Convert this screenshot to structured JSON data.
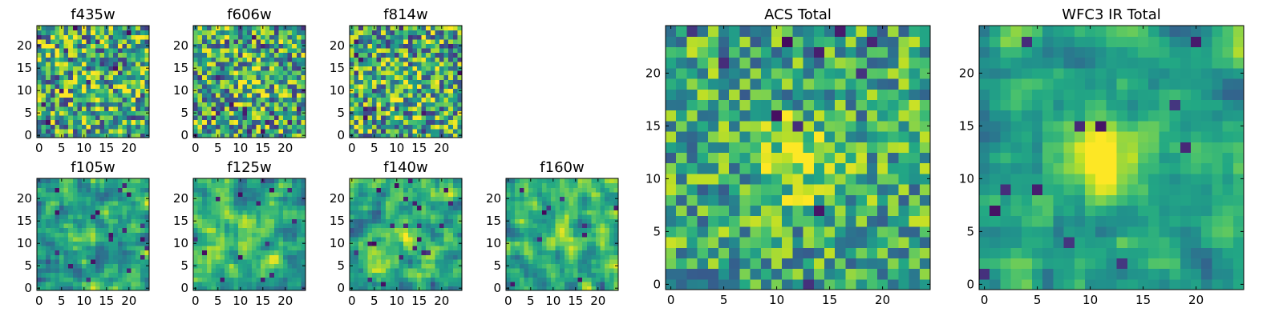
{
  "chart_data": [
    {
      "type": "heatmap",
      "title": "f435w",
      "grid_size": 25,
      "xlim": [
        0,
        24
      ],
      "ylim": [
        0,
        24
      ],
      "xticks": [
        0,
        5,
        10,
        15,
        20
      ],
      "yticks": [
        0,
        5,
        10,
        15,
        20
      ],
      "seed": 11,
      "peak": [
        11,
        11
      ],
      "peak_strength": 0.12,
      "noise": 0.55,
      "colormap": "viridis"
    },
    {
      "type": "heatmap",
      "title": "f606w",
      "grid_size": 25,
      "xlim": [
        0,
        24
      ],
      "ylim": [
        0,
        24
      ],
      "xticks": [
        0,
        5,
        10,
        15,
        20
      ],
      "yticks": [
        0,
        5,
        10,
        15,
        20
      ],
      "seed": 23,
      "peak": [
        12,
        12
      ],
      "peak_strength": 0.22,
      "noise": 0.55,
      "colormap": "viridis"
    },
    {
      "type": "heatmap",
      "title": "f814w",
      "grid_size": 25,
      "xlim": [
        0,
        24
      ],
      "ylim": [
        0,
        24
      ],
      "xticks": [
        0,
        5,
        10,
        15,
        20
      ],
      "yticks": [
        0,
        5,
        10,
        15,
        20
      ],
      "seed": 37,
      "peak": [
        12,
        11
      ],
      "peak_strength": 0.15,
      "noise": 0.55,
      "colormap": "viridis"
    },
    {
      "type": "heatmap",
      "title": "f105w",
      "grid_size": 25,
      "xlim": [
        0,
        24
      ],
      "ylim": [
        0,
        24
      ],
      "xticks": [
        0,
        5,
        10,
        15,
        20
      ],
      "yticks": [
        0,
        5,
        10,
        15,
        20
      ],
      "seed": 41,
      "peak": [
        11,
        13
      ],
      "peak_strength": 0.18,
      "noise": 0.45,
      "smooth": true,
      "colormap": "viridis"
    },
    {
      "type": "heatmap",
      "title": "f125w",
      "grid_size": 25,
      "xlim": [
        0,
        24
      ],
      "ylim": [
        0,
        24
      ],
      "xticks": [
        0,
        5,
        10,
        15,
        20
      ],
      "yticks": [
        0,
        5,
        10,
        15,
        20
      ],
      "seed": 53,
      "peak": [
        12,
        11
      ],
      "peak_strength": 0.15,
      "noise": 0.45,
      "smooth": true,
      "colormap": "viridis"
    },
    {
      "type": "heatmap",
      "title": "f140w",
      "grid_size": 25,
      "xlim": [
        0,
        24
      ],
      "ylim": [
        0,
        24
      ],
      "xticks": [
        0,
        5,
        10,
        15,
        20
      ],
      "yticks": [
        0,
        5,
        10,
        15,
        20
      ],
      "seed": 67,
      "peak": [
        10,
        12
      ],
      "peak_strength": 0.2,
      "noise": 0.45,
      "smooth": true,
      "colormap": "viridis"
    },
    {
      "type": "heatmap",
      "title": "f160w",
      "grid_size": 25,
      "xlim": [
        0,
        24
      ],
      "ylim": [
        0,
        24
      ],
      "xticks": [
        0,
        5,
        10,
        15,
        20
      ],
      "yticks": [
        0,
        5,
        10,
        15,
        20
      ],
      "seed": 79,
      "peak": [
        12,
        12
      ],
      "peak_strength": 0.25,
      "noise": 0.45,
      "smooth": true,
      "colormap": "viridis"
    },
    {
      "type": "heatmap",
      "title": "ACS Total",
      "grid_size": 25,
      "xlim": [
        0,
        24
      ],
      "ylim": [
        0,
        24
      ],
      "xticks": [
        0,
        5,
        10,
        15,
        20
      ],
      "yticks": [
        0,
        5,
        10,
        15,
        20
      ],
      "seed": 97,
      "peak": [
        12,
        12
      ],
      "peak_strength": 0.35,
      "noise": 0.4,
      "colormap": "viridis"
    },
    {
      "type": "heatmap",
      "title": "WFC3 IR Total",
      "grid_size": 25,
      "xlim": [
        0,
        24
      ],
      "ylim": [
        0,
        24
      ],
      "xticks": [
        0,
        5,
        10,
        15,
        20
      ],
      "yticks": [
        0,
        5,
        10,
        15,
        20
      ],
      "seed": 113,
      "peak": [
        11,
        12
      ],
      "peak_strength": 0.5,
      "noise": 0.35,
      "smooth": true,
      "colormap": "viridis"
    }
  ]
}
